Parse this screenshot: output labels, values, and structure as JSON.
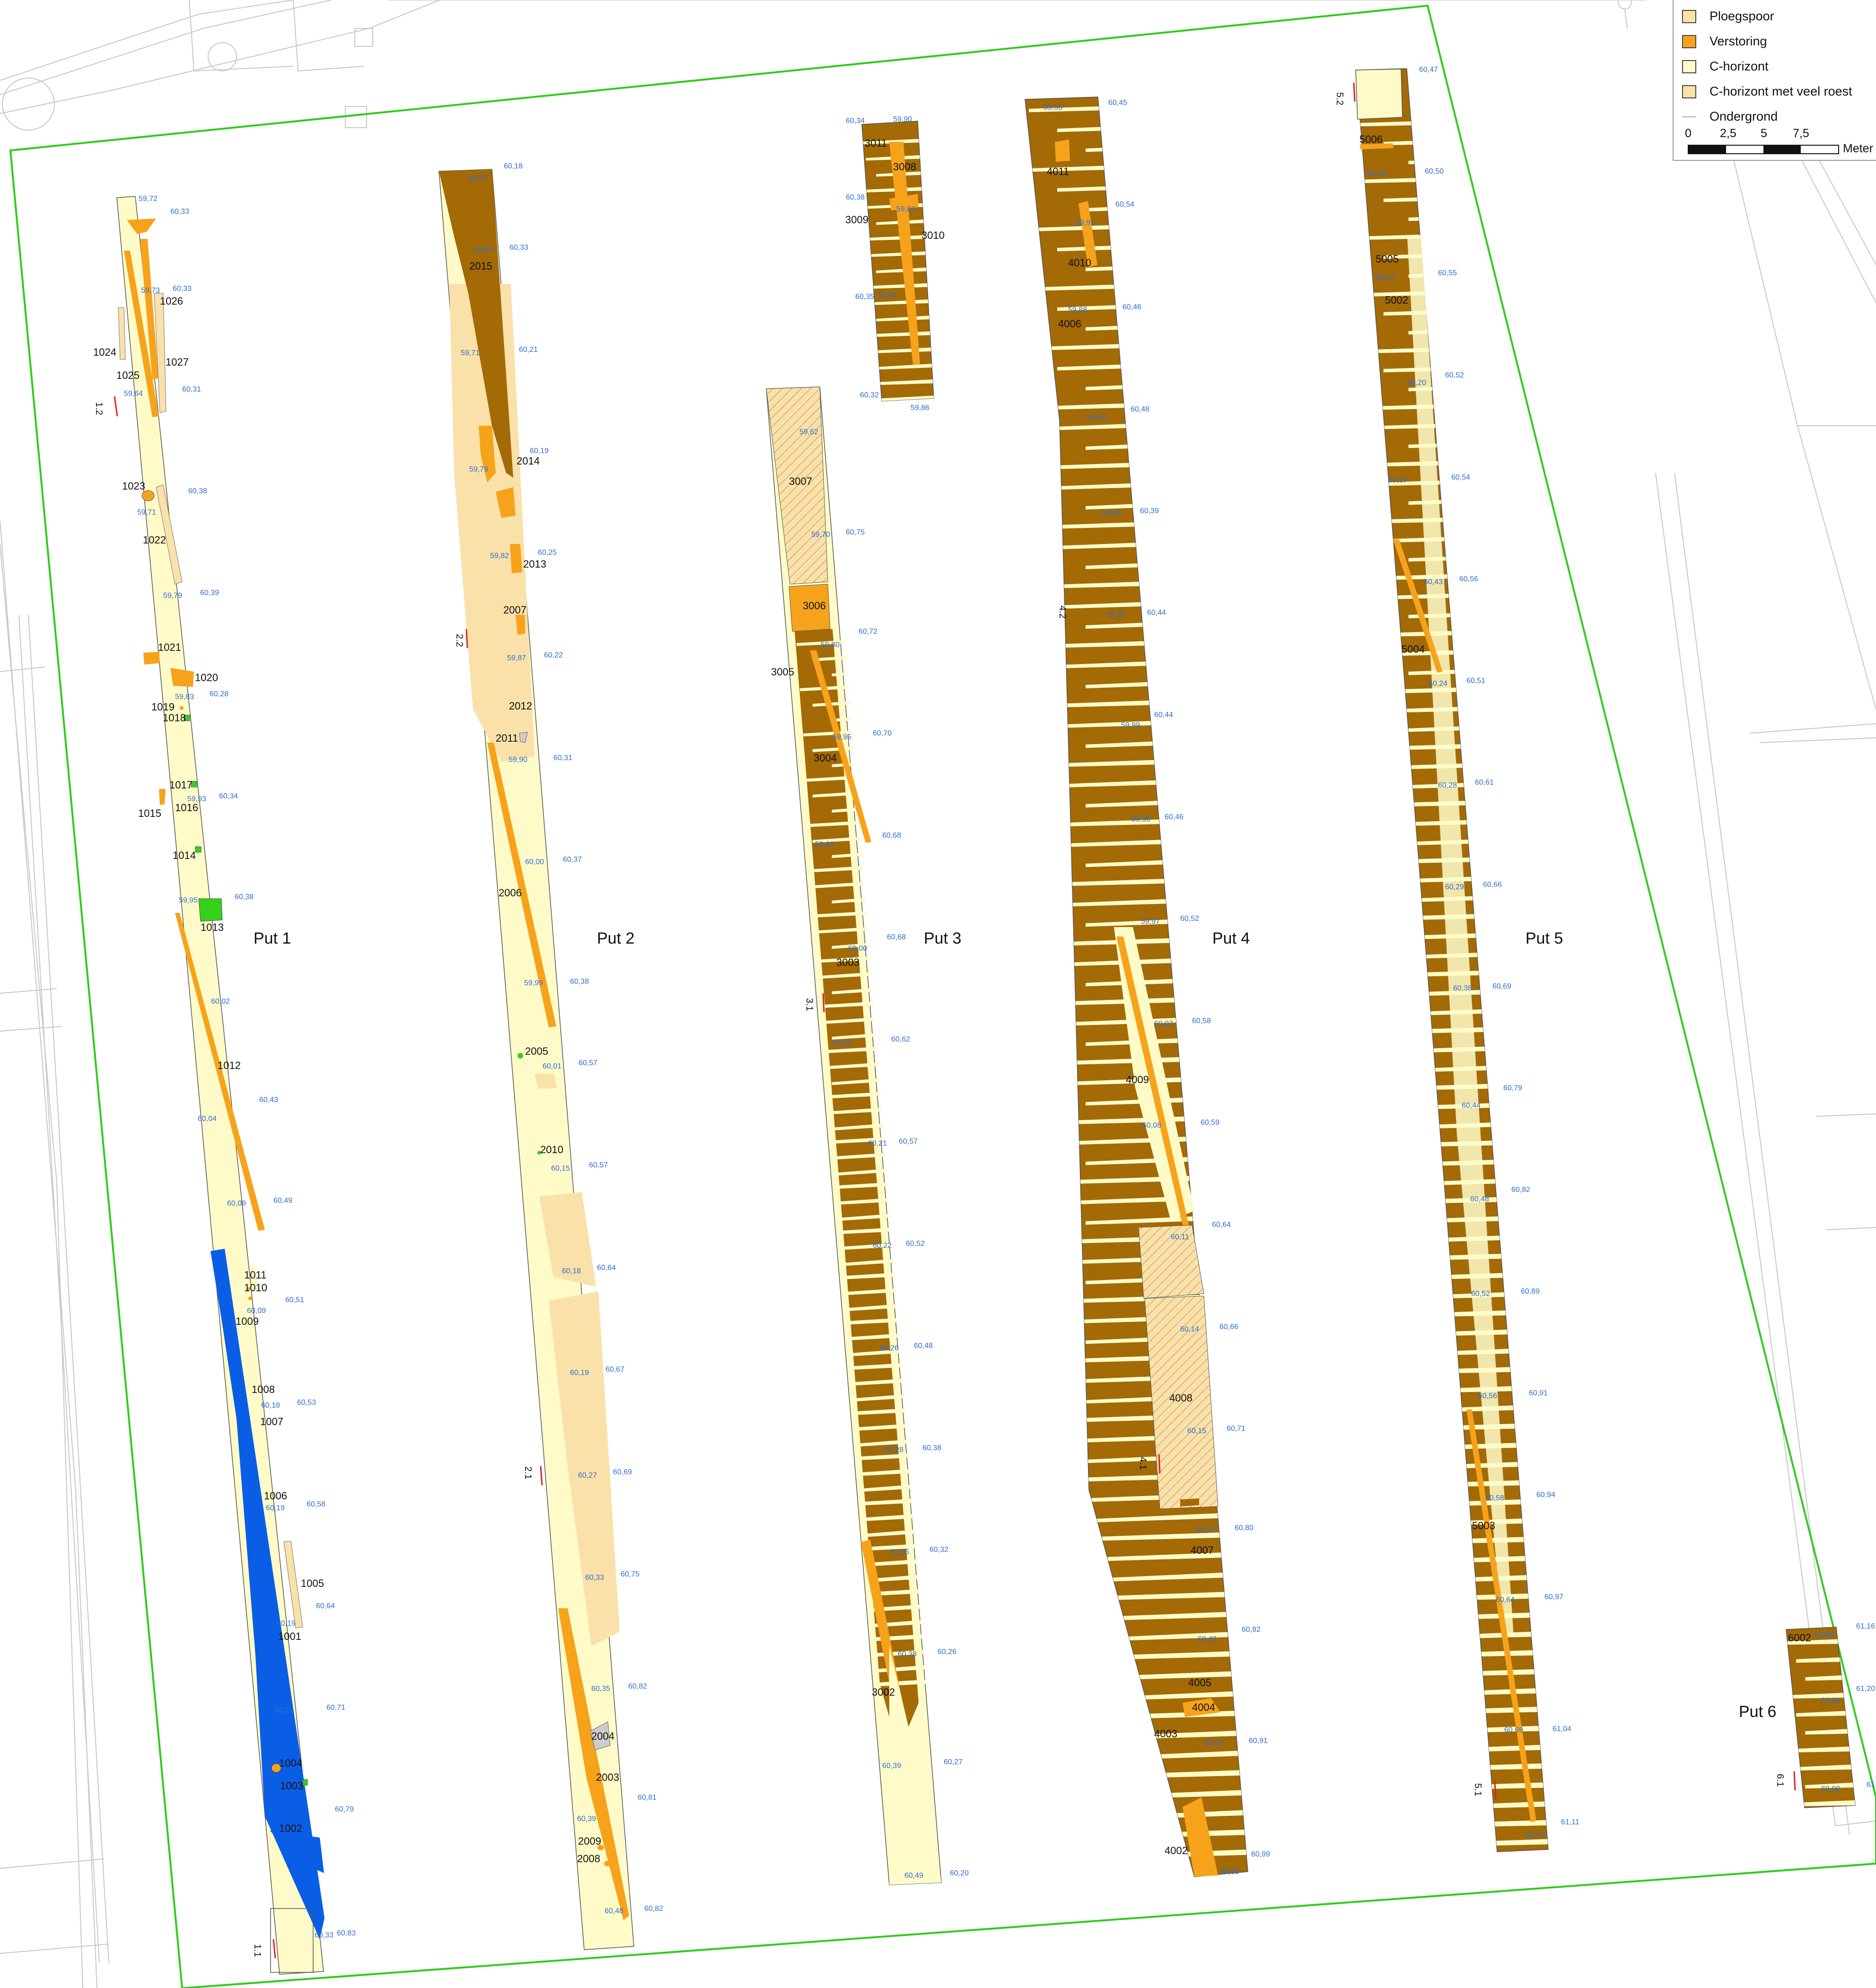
{
  "legend": {
    "items": [
      {
        "label": "Ploegspoor",
        "color": "#fbe3a6"
      },
      {
        "label": "Verstoring",
        "color": "#f6a31b"
      },
      {
        "label": "C-horizont",
        "color": "#fffbc9"
      },
      {
        "label": "C-horizont met veel roest",
        "color": "#fae1a9"
      },
      {
        "label": "Ondergrond",
        "color": "#b0b0b0"
      }
    ],
    "scale": {
      "ticks": [
        "0",
        "2,5",
        "5",
        "7,5"
      ],
      "unit": "Meter"
    }
  },
  "colors": {
    "trench_boundary": "#2ecc1a",
    "c_horizont": "#fffbc9",
    "roest": "#fae1a9",
    "ploeg": "#fbe3a6",
    "verstoring": "#f6a31b",
    "subsoil": "#a36a06",
    "blue_feature": "#0a5ee6",
    "green_feature": "#33d11a",
    "elevation_text": "#2f6fd0",
    "background_lines": "#c8c8c8"
  },
  "trenches": [
    {
      "name": "Put 1",
      "profiles": [
        "1.2",
        "1.1"
      ],
      "features": [
        "1027",
        "1026",
        "1025",
        "1024",
        "1023",
        "1022",
        "1021",
        "1020",
        "1019",
        "1018",
        "1017",
        "1016",
        "1015",
        "1014",
        "1013",
        "1012",
        "1011",
        "1010",
        "1009",
        "1008",
        "1007",
        "1006",
        "1005",
        "1004",
        "1003",
        "1002",
        "1001"
      ],
      "elevations": [
        "59,72",
        "60,33",
        "59,73",
        "60,33",
        "59,64",
        "60,31",
        "60,38",
        "59,71",
        "59,79",
        "60,39",
        "59,83",
        "60,28",
        "59,93",
        "60,34",
        "59,95",
        "60,38",
        "60,02",
        "60,43",
        "60,04",
        "60,09",
        "60,49",
        "60,09",
        "60,51",
        "60,18",
        "60,53",
        "60,19",
        "60,58",
        "60,64",
        "60,19",
        "60,22",
        "60,71",
        "60,79",
        "60,33",
        "60,83"
      ]
    },
    {
      "name": "Put 2",
      "profiles": [
        "2.2",
        "2.1"
      ],
      "features": [
        "2015",
        "2014",
        "2013",
        "2012",
        "2011",
        "2010",
        "2009",
        "2008",
        "2007",
        "2006",
        "2005",
        "2004",
        "2003"
      ],
      "elevations": [
        "59,67",
        "60,18",
        "59,65",
        "60,33",
        "59,71",
        "60,21",
        "59,79",
        "60,19",
        "59,82",
        "60,25",
        "59,87",
        "60,22",
        "59,90",
        "60,31",
        "60,00",
        "60,37",
        "59,99",
        "60,38",
        "60,01",
        "60,57",
        "60,15",
        "60,57",
        "60,18",
        "60,64",
        "60,19",
        "60,67",
        "60,27",
        "60,69",
        "60,33",
        "60,75",
        "60,35",
        "60,82",
        "60,39",
        "60,81",
        "60,48",
        "60,82"
      ]
    },
    {
      "name": "Put 3",
      "profiles": [
        "3.1"
      ],
      "features": [
        "3011",
        "3010",
        "3009",
        "3008",
        "3007",
        "3006",
        "3005",
        "3004",
        "3003",
        "3002"
      ],
      "elevations": [
        "60,34",
        "59,90",
        "60,38",
        "59,86",
        "60,35",
        "59,87",
        "60,32",
        "59,86",
        "59,62",
        "60,75",
        "59,70",
        "60,72",
        "59,80",
        "60,70",
        "59,95",
        "60,68",
        "59,96",
        "60,68",
        "60,00",
        "60,62",
        "60,10",
        "60,57",
        "60,21",
        "60,52",
        "60,22",
        "60,48",
        "60,26",
        "60,38",
        "60,28",
        "60,32",
        "60,36",
        "60,26",
        "60,38",
        "60,27",
        "60,39",
        "60,49",
        "60,20"
      ]
    },
    {
      "name": "Put 4",
      "profiles": [
        "4.2",
        "4.1"
      ],
      "features": [
        "4011",
        "4010",
        "4009",
        "4008",
        "4007",
        "4006",
        "4005",
        "4004",
        "4003",
        "4002"
      ],
      "elevations": [
        "59,98",
        "60,45",
        "59,91",
        "60,54",
        "59,88",
        "60,46",
        "59,96",
        "60,48",
        "59,99",
        "60,39",
        "59,97",
        "60,44",
        "59,99",
        "60,44",
        "59,98",
        "60,46",
        "59,97",
        "60,52",
        "60,07",
        "60,58",
        "60,08",
        "60,59",
        "60,11",
        "60,64",
        "60,14",
        "60,66",
        "60,15",
        "60,71",
        "60,27",
        "60,80",
        "60,42",
        "60,82",
        "60,50",
        "60,91",
        "60,59",
        "60,99"
      ]
    },
    {
      "name": "Put 5",
      "profiles": [
        "5.2",
        "5.1"
      ],
      "features": [
        "5006",
        "5005",
        "5004",
        "5003",
        "5002"
      ],
      "elevations": [
        "60,47",
        "60,04",
        "60,50",
        "60,12",
        "60,55",
        "60,20",
        "60,52",
        "60,37",
        "60,54",
        "60,43",
        "60,56",
        "60,24",
        "60,51",
        "60,28",
        "60,61",
        "60,29",
        "60,66",
        "60,38",
        "60,69",
        "60,44",
        "60,79",
        "60,48",
        "60,82",
        "60,52",
        "60,89",
        "60,56",
        "60,91",
        "60,58",
        "60,94",
        "60,64",
        "60,97",
        "60,69",
        "61,04",
        "60,72",
        "61,11"
      ]
    },
    {
      "name": "Put 6",
      "profiles": [
        "6.1"
      ],
      "features": [
        "6002"
      ],
      "elevations": [
        "60,96",
        "61,16",
        "60,99",
        "61,20",
        "60,98",
        "61"
      ]
    }
  ]
}
